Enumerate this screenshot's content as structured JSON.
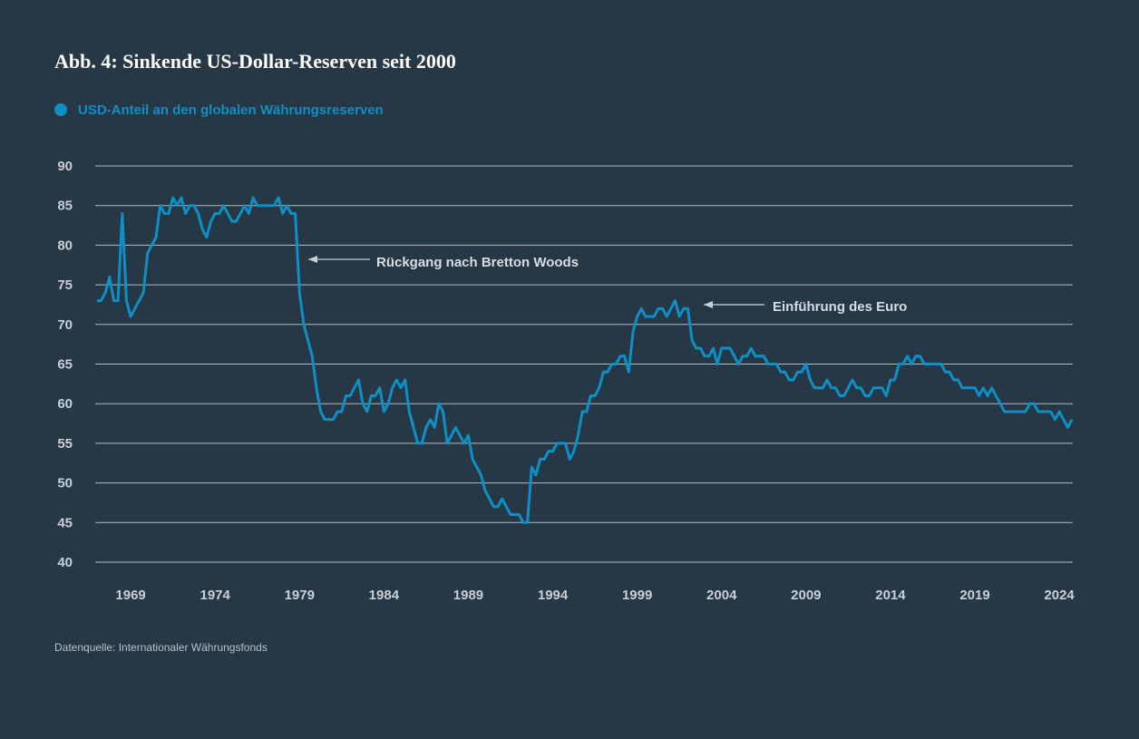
{
  "chart_data": {
    "type": "line",
    "title": "Abb. 4: Sinkende US-Dollar-Reserven seit 2000",
    "source": "Datenquelle: Internationaler Währungsfonds",
    "annotations": [
      "Rückgang nach Bretton Woods",
      "Einführung des Euro"
    ],
    "grid": true,
    "xlim": [
      1966.9,
      2024.8
    ],
    "xticks": [
      1969,
      1974,
      1979,
      1984,
      1989,
      1994,
      1999,
      2004,
      2009,
      2014,
      2019,
      2024
    ],
    "ylim": [
      40,
      90
    ],
    "yticks": [
      40,
      45,
      50,
      55,
      60,
      65,
      70,
      75,
      80,
      85,
      90
    ],
    "x": [
      1967,
      1967.25,
      1967.5,
      1967.75,
      1968,
      1968.25,
      1968.5,
      1968.75,
      1969,
      1969.25,
      1969.5,
      1969.75,
      1970,
      1970.25,
      1970.5,
      1970.75,
      1971,
      1971.25,
      1971.5,
      1971.75,
      1972,
      1972.25,
      1972.5,
      1972.75,
      1973,
      1973.25,
      1973.5,
      1973.75,
      1974,
      1974.25,
      1974.5,
      1974.75,
      1975,
      1975.25,
      1975.5,
      1975.75,
      1976,
      1976.25,
      1976.5,
      1976.75,
      1977,
      1977.25,
      1977.5,
      1977.75,
      1978,
      1978.25,
      1978.5,
      1978.75,
      1979,
      1979.25,
      1979.5,
      1979.75,
      1980,
      1980.25,
      1980.5,
      1980.75,
      1981,
      1981.25,
      1981.5,
      1981.75,
      1982,
      1982.25,
      1982.5,
      1982.75,
      1983,
      1983.25,
      1983.5,
      1983.75,
      1984,
      1984.25,
      1984.5,
      1984.75,
      1985,
      1985.25,
      1985.5,
      1985.75,
      1986,
      1986.25,
      1986.5,
      1986.75,
      1987,
      1987.25,
      1987.5,
      1987.75,
      1988,
      1988.25,
      1988.5,
      1988.75,
      1989,
      1989.25,
      1989.5,
      1989.75,
      1990,
      1990.25,
      1990.5,
      1990.75,
      1991,
      1991.25,
      1991.5,
      1991.75,
      1992,
      1992.25,
      1992.5,
      1992.75,
      1993,
      1993.25,
      1993.5,
      1993.75,
      1994,
      1994.25,
      1994.5,
      1994.75,
      1995,
      1995.25,
      1995.5,
      1995.75,
      1996,
      1996.25,
      1996.5,
      1996.75,
      1997,
      1997.25,
      1997.5,
      1997.75,
      1998,
      1998.25,
      1998.5,
      1998.75,
      1999,
      1999.25,
      1999.5,
      1999.75,
      2000,
      2000.25,
      2000.5,
      2000.75,
      2001,
      2001.25,
      2001.5,
      2001.75,
      2002,
      2002.25,
      2002.5,
      2002.75,
      2003,
      2003.25,
      2003.5,
      2003.75,
      2004,
      2004.25,
      2004.5,
      2004.75,
      2005,
      2005.25,
      2005.5,
      2005.75,
      2006,
      2006.25,
      2006.5,
      2006.75,
      2007,
      2007.25,
      2007.5,
      2007.75,
      2008,
      2008.25,
      2008.5,
      2008.75,
      2009,
      2009.25,
      2009.5,
      2009.75,
      2010,
      2010.25,
      2010.5,
      2010.75,
      2011,
      2011.25,
      2011.5,
      2011.75,
      2012,
      2012.25,
      2012.5,
      2012.75,
      2013,
      2013.25,
      2013.5,
      2013.75,
      2014,
      2014.25,
      2014.5,
      2014.75,
      2015,
      2015.25,
      2015.5,
      2015.75,
      2016,
      2016.25,
      2016.5,
      2016.75,
      2017,
      2017.25,
      2017.5,
      2017.75,
      2018,
      2018.25,
      2018.5,
      2018.75,
      2019,
      2019.25,
      2019.5,
      2019.75,
      2020,
      2020.25,
      2020.5,
      2020.75,
      2021,
      2021.25,
      2021.5,
      2021.75,
      2022,
      2022.25,
      2022.5,
      2022.75,
      2023,
      2023.25,
      2023.5,
      2023.75,
      2024,
      2024.25,
      2024.5,
      2024.75
    ],
    "series": [
      {
        "name": "USD-Anteil an den globalen Währungsreserven",
        "color": "#0e8fc6",
        "values": [
          73,
          73,
          74,
          76,
          73,
          73,
          84,
          73,
          71,
          72,
          73,
          74,
          79,
          80,
          81,
          85,
          84,
          84,
          86,
          85,
          86,
          84,
          85,
          85,
          84,
          82,
          81,
          83,
          84,
          84,
          85,
          84,
          83,
          83,
          84,
          85,
          84,
          86,
          85,
          85,
          85,
          85,
          85,
          86,
          84,
          85,
          84,
          84,
          74,
          70,
          68,
          66,
          62,
          59,
          58,
          58,
          58,
          59,
          59,
          61,
          61,
          62,
          63,
          60,
          59,
          61,
          61,
          62,
          59,
          60,
          62,
          63,
          62,
          63,
          59,
          57,
          55,
          55,
          57,
          58,
          57,
          60,
          59,
          55,
          56,
          57,
          56,
          55,
          56,
          53,
          52,
          51,
          49,
          48,
          47,
          47,
          48,
          47,
          46,
          46,
          46,
          45,
          45,
          52,
          51,
          53,
          53,
          54,
          54,
          55,
          55,
          55,
          53,
          54,
          56,
          59,
          59,
          61,
          61,
          62,
          64,
          64,
          65,
          65,
          66,
          66,
          64,
          69,
          71,
          72,
          71,
          71,
          71,
          72,
          72,
          71,
          72,
          73,
          71,
          72,
          72,
          68,
          67,
          67,
          66,
          66,
          67,
          65,
          67,
          67,
          67,
          66,
          65,
          66,
          66,
          67,
          66,
          66,
          66,
          65,
          65,
          65,
          64,
          64,
          63,
          63,
          64,
          64,
          65,
          63,
          62,
          62,
          62,
          63,
          62,
          62,
          61,
          61,
          62,
          63,
          62,
          62,
          61,
          61,
          62,
          62,
          62,
          61,
          63,
          63,
          65,
          65,
          66,
          65,
          66,
          66,
          65,
          65,
          65,
          65,
          65,
          64,
          64,
          63,
          63,
          62,
          62,
          62,
          62,
          61,
          62,
          61,
          62,
          61,
          60,
          59,
          59,
          59,
          59,
          59,
          59,
          60,
          60,
          59,
          59,
          59,
          59,
          58,
          59,
          58,
          57,
          58
        ]
      }
    ]
  }
}
